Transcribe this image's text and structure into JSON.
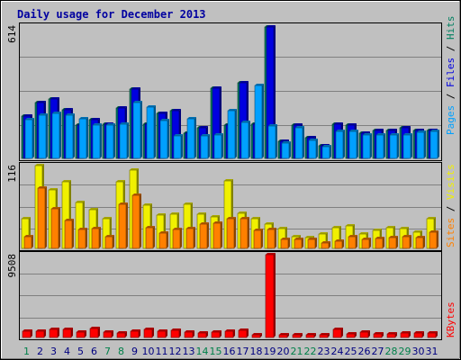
{
  "chart_data": {
    "type": "bar",
    "title": "Daily usage for December 2013",
    "days": [
      "1",
      "2",
      "3",
      "4",
      "5",
      "6",
      "7",
      "8",
      "9",
      "10",
      "11",
      "12",
      "13",
      "14",
      "15",
      "16",
      "17",
      "18",
      "19",
      "20",
      "21",
      "22",
      "23",
      "24",
      "25",
      "26",
      "27",
      "28",
      "29",
      "30",
      "31"
    ],
    "weekend_days": [
      "1",
      "7",
      "8",
      "14",
      "15",
      "21",
      "22",
      "28",
      "29"
    ],
    "panels": [
      {
        "id": "hits",
        "ymax_label": "614",
        "ymax": 614,
        "side_labels": [
          "Pages",
          " / ",
          "Files",
          " / ",
          "Hits"
        ],
        "side_colors": [
          "#00a0ff",
          "#000000",
          "#0000e0",
          "#000000",
          "#008060"
        ],
        "series": [
          {
            "name": "Hits",
            "color": "#008060",
            "values": [
              195,
              260,
              275,
              225,
              155,
              180,
              160,
              235,
              320,
              160,
              210,
              220,
              115,
              140,
              325,
              155,
              350,
              160,
              610,
              80,
              155,
              95,
              60,
              160,
              155,
              115,
              130,
              130,
              140,
              130,
              130
            ]
          },
          {
            "name": "Files",
            "color": "#0000e0",
            "values": [
              195,
              260,
              275,
              225,
              155,
              180,
              160,
              235,
              320,
              160,
              210,
              220,
              115,
              140,
              325,
              155,
              350,
              160,
              610,
              80,
              155,
              95,
              60,
              160,
              155,
              115,
              130,
              130,
              140,
              130,
              130
            ]
          },
          {
            "name": "Pages",
            "color": "#00a0ff",
            "values": [
              180,
              200,
              210,
              200,
              185,
              155,
              155,
              160,
              260,
              240,
              175,
              105,
              185,
              105,
              110,
              220,
              165,
              340,
              150,
              70,
              140,
              85,
              55,
              125,
              125,
              110,
              110,
              110,
              110,
              120,
              125
            ]
          }
        ]
      },
      {
        "id": "visits",
        "ymax_label": "116",
        "ymax": 116,
        "side_labels": [
          "Sites",
          " / ",
          "Visits"
        ],
        "side_colors": [
          "#ff8000",
          "#000000",
          "#f0f000"
        ],
        "series": [
          {
            "name": "Visits",
            "color": "#f0f000",
            "values": [
              42,
              116,
              82,
              93,
              64,
              54,
              41,
              93,
              110,
              61,
              47,
              48,
              62,
              48,
              44,
              94,
              49,
              42,
              34,
              28,
              16,
              15,
              20,
              29,
              32,
              20,
              25,
              29,
              28,
              23,
              42
            ]
          },
          {
            "name": "Sites",
            "color": "#ff8000",
            "values": [
              17,
              84,
              56,
              39,
              27,
              28,
              16,
              62,
              74,
              29,
              22,
              26,
              28,
              34,
              35,
              42,
              41,
              25,
              27,
              13,
              12,
              13,
              8,
              10,
              16,
              13,
              14,
              15,
              17,
              15,
              23
            ]
          }
        ]
      },
      {
        "id": "kbytes",
        "ymax_label": "9508",
        "ymax": 9508,
        "side_labels": [
          "KBytes"
        ],
        "side_colors": [
          "#ff0000"
        ],
        "series": [
          {
            "name": "KBytes",
            "color": "#ff0000",
            "values": [
              690,
              700,
              890,
              980,
              580,
              1050,
              630,
              520,
              740,
              880,
              690,
              790,
              590,
              540,
              580,
              730,
              820,
              350,
              9508,
              350,
              290,
              320,
              290,
              940,
              460,
              620,
              380,
              460,
              520,
              500,
              540
            ]
          }
        ]
      }
    ]
  }
}
